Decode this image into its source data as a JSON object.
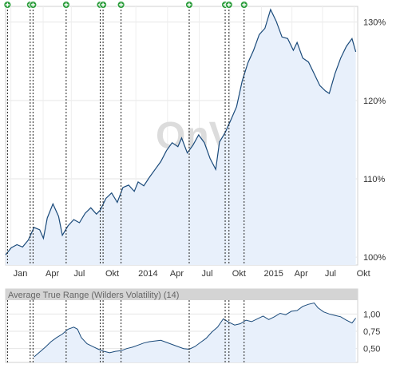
{
  "chart_data": [
    {
      "type": "area",
      "title": "",
      "xlabel": "",
      "ylabel": "",
      "x_ticks": [
        "Jan",
        "Apr",
        "Jul",
        "Okt",
        "2014",
        "Apr",
        "Jul",
        "Okt",
        "2015",
        "Apr",
        "Jul",
        "Okt"
      ],
      "y_ticks": [
        "130%",
        "120%",
        "110%",
        "100%"
      ],
      "ylim": [
        99,
        132
      ],
      "grid": true,
      "watermark": "OnVista",
      "colors": {
        "line": "#1a4a7a",
        "fill": "#e8f0fb",
        "event_marker": "#2e9e3e"
      },
      "event_markers": [
        {
          "month": 0.1
        },
        {
          "month": 1.3
        },
        {
          "month": 1.45
        },
        {
          "month": 3.2
        },
        {
          "month": 5.0
        },
        {
          "month": 5.15
        },
        {
          "month": 6.1
        },
        {
          "month": 9.7
        },
        {
          "month": 11.6
        },
        {
          "month": 11.8
        },
        {
          "month": 12.6
        }
      ],
      "series": [
        {
          "values": [
            [
              0.0,
              100.3
            ],
            [
              0.3,
              101.2
            ],
            [
              0.6,
              101.6
            ],
            [
              0.9,
              101.3
            ],
            [
              1.2,
              102.2
            ],
            [
              1.5,
              103.8
            ],
            [
              1.8,
              103.5
            ],
            [
              2.0,
              102.4
            ],
            [
              2.2,
              105.0
            ],
            [
              2.5,
              106.8
            ],
            [
              2.8,
              105.2
            ],
            [
              3.0,
              102.8
            ],
            [
              3.3,
              104.0
            ],
            [
              3.6,
              104.8
            ],
            [
              3.9,
              104.4
            ],
            [
              4.2,
              105.6
            ],
            [
              4.5,
              106.3
            ],
            [
              4.8,
              105.5
            ],
            [
              5.0,
              106.0
            ],
            [
              5.3,
              107.5
            ],
            [
              5.6,
              108.2
            ],
            [
              5.9,
              107.0
            ],
            [
              6.2,
              108.9
            ],
            [
              6.5,
              109.2
            ],
            [
              6.8,
              108.4
            ],
            [
              7.0,
              109.6
            ],
            [
              7.3,
              109.1
            ],
            [
              7.6,
              110.2
            ],
            [
              7.9,
              111.2
            ],
            [
              8.2,
              112.2
            ],
            [
              8.5,
              113.6
            ],
            [
              8.8,
              114.6
            ],
            [
              9.1,
              114.1
            ],
            [
              9.3,
              115.2
            ],
            [
              9.6,
              113.3
            ],
            [
              9.9,
              114.3
            ],
            [
              10.2,
              115.6
            ],
            [
              10.5,
              114.6
            ],
            [
              10.8,
              112.6
            ],
            [
              11.1,
              111.2
            ],
            [
              11.3,
              114.7
            ],
            [
              11.6,
              115.9
            ],
            [
              11.9,
              117.5
            ],
            [
              12.2,
              119.2
            ],
            [
              12.5,
              122.5
            ],
            [
              12.8,
              124.8
            ],
            [
              13.1,
              126.4
            ],
            [
              13.4,
              128.4
            ],
            [
              13.7,
              129.2
            ],
            [
              14.0,
              131.6
            ],
            [
              14.3,
              130.1
            ],
            [
              14.6,
              128.1
            ],
            [
              14.9,
              127.9
            ],
            [
              15.2,
              126.4
            ],
            [
              15.4,
              127.4
            ],
            [
              15.7,
              125.4
            ],
            [
              16.0,
              124.9
            ],
            [
              16.3,
              123.4
            ],
            [
              16.6,
              121.9
            ],
            [
              16.9,
              121.2
            ],
            [
              17.1,
              120.9
            ],
            [
              17.4,
              123.4
            ],
            [
              17.7,
              125.4
            ],
            [
              18.0,
              126.9
            ],
            [
              18.3,
              127.9
            ],
            [
              18.5,
              126.2
            ]
          ]
        }
      ]
    },
    {
      "type": "area",
      "title": "Average True Range (Wilders Volatility) (14)",
      "xlabel": "",
      "ylabel": "",
      "y_ticks": [
        "1,00",
        "0,75",
        "0,50"
      ],
      "ylim": [
        0.3,
        1.2
      ],
      "grid": true,
      "colors": {
        "line": "#1a4a7a",
        "fill": "#e8f0fb"
      },
      "series": [
        {
          "values": [
            [
              1.5,
              0.38
            ],
            [
              1.8,
              0.45
            ],
            [
              2.1,
              0.52
            ],
            [
              2.4,
              0.6
            ],
            [
              2.7,
              0.66
            ],
            [
              3.0,
              0.71
            ],
            [
              3.3,
              0.78
            ],
            [
              3.6,
              0.81
            ],
            [
              3.8,
              0.78
            ],
            [
              4.0,
              0.66
            ],
            [
              4.3,
              0.57
            ],
            [
              4.6,
              0.53
            ],
            [
              4.9,
              0.49
            ],
            [
              5.2,
              0.46
            ],
            [
              5.5,
              0.44
            ],
            [
              5.8,
              0.46
            ],
            [
              6.1,
              0.47
            ],
            [
              6.4,
              0.5
            ],
            [
              6.7,
              0.52
            ],
            [
              7.0,
              0.55
            ],
            [
              7.3,
              0.58
            ],
            [
              7.6,
              0.6
            ],
            [
              7.9,
              0.61
            ],
            [
              8.2,
              0.62
            ],
            [
              8.5,
              0.59
            ],
            [
              8.8,
              0.56
            ],
            [
              9.1,
              0.53
            ],
            [
              9.4,
              0.5
            ],
            [
              9.7,
              0.49
            ],
            [
              10.0,
              0.53
            ],
            [
              10.3,
              0.59
            ],
            [
              10.6,
              0.65
            ],
            [
              10.9,
              0.74
            ],
            [
              11.2,
              0.81
            ],
            [
              11.5,
              0.93
            ],
            [
              11.8,
              0.88
            ],
            [
              12.1,
              0.84
            ],
            [
              12.4,
              0.86
            ],
            [
              12.7,
              0.91
            ],
            [
              13.0,
              0.89
            ],
            [
              13.3,
              0.93
            ],
            [
              13.6,
              0.97
            ],
            [
              13.9,
              0.92
            ],
            [
              14.2,
              0.96
            ],
            [
              14.5,
              1.01
            ],
            [
              14.8,
              0.99
            ],
            [
              15.1,
              1.04
            ],
            [
              15.4,
              1.05
            ],
            [
              15.7,
              1.11
            ],
            [
              16.0,
              1.14
            ],
            [
              16.3,
              1.16
            ],
            [
              16.5,
              1.09
            ],
            [
              16.8,
              1.03
            ],
            [
              17.1,
              1.0
            ],
            [
              17.4,
              0.98
            ],
            [
              17.7,
              0.96
            ],
            [
              18.0,
              0.91
            ],
            [
              18.3,
              0.87
            ],
            [
              18.5,
              0.94
            ]
          ]
        }
      ]
    }
  ]
}
